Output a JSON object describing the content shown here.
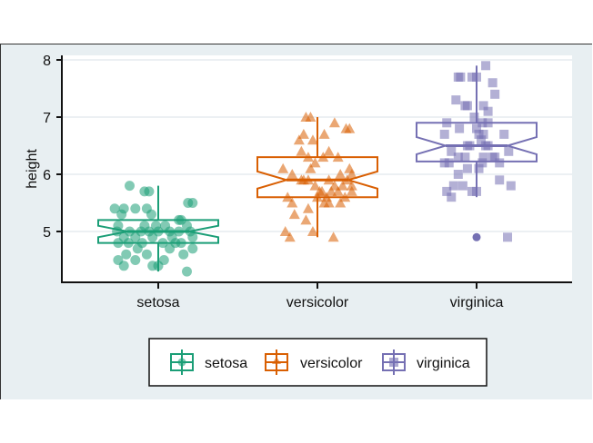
{
  "chart_data": {
    "type": "boxplot",
    "title": "",
    "xlabel": "",
    "ylabel": "height",
    "ylim": [
      4.1,
      8.1
    ],
    "yticks": [
      5,
      6,
      7,
      8
    ],
    "categories": [
      "setosa",
      "versicolor",
      "virginica"
    ],
    "grid": true,
    "notched": true,
    "legend": {
      "position": "bottom",
      "entries": [
        {
          "label": "setosa",
          "marker": "circle",
          "color": "#1b9e77"
        },
        {
          "label": "versicolor",
          "marker": "triangle",
          "color": "#d95f02"
        },
        {
          "label": "virginica",
          "marker": "square",
          "color": "#7570b3"
        }
      ]
    },
    "series": [
      {
        "name": "setosa",
        "color": "#1b9e77",
        "marker": "circle",
        "box": {
          "whisker_low": 4.3,
          "q1": 4.8,
          "median": 5.0,
          "q3": 5.2,
          "whisker_high": 5.8,
          "notch_low": 4.9,
          "notch_high": 5.1
        },
        "outliers": [],
        "points": [
          [
            -0.25,
            5.8
          ],
          [
            -0.12,
            5.7
          ],
          [
            -0.08,
            5.7
          ],
          [
            0.26,
            5.5
          ],
          [
            0.3,
            5.5
          ],
          [
            -0.38,
            5.4
          ],
          [
            -0.3,
            5.4
          ],
          [
            -0.2,
            5.4
          ],
          [
            -0.1,
            5.4
          ],
          [
            -0.06,
            5.3
          ],
          [
            -0.32,
            5.3
          ],
          [
            0.18,
            5.2
          ],
          [
            0.25,
            5.1
          ],
          [
            -0.35,
            5.1
          ],
          [
            -0.12,
            5.1
          ],
          [
            -0.02,
            5.1
          ],
          [
            0.06,
            5.1
          ],
          [
            0.2,
            5.2
          ],
          [
            0.28,
            5.0
          ],
          [
            -0.36,
            5.0
          ],
          [
            -0.25,
            5.0
          ],
          [
            -0.15,
            5.0
          ],
          [
            0.0,
            5.0
          ],
          [
            0.1,
            5.0
          ],
          [
            0.18,
            5.0
          ],
          [
            0.3,
            4.9
          ],
          [
            -0.3,
            4.9
          ],
          [
            -0.2,
            4.9
          ],
          [
            -0.05,
            4.9
          ],
          [
            0.2,
            4.8
          ],
          [
            -0.35,
            4.8
          ],
          [
            -0.26,
            4.8
          ],
          [
            -0.14,
            4.8
          ],
          [
            0.04,
            4.8
          ],
          [
            0.3,
            4.7
          ],
          [
            0.1,
            4.7
          ],
          [
            -0.18,
            4.7
          ],
          [
            0.22,
            4.6
          ],
          [
            -0.28,
            4.6
          ],
          [
            -0.35,
            4.5
          ],
          [
            -0.1,
            4.6
          ],
          [
            0.05,
            4.5
          ],
          [
            -0.3,
            4.4
          ],
          [
            -0.05,
            4.4
          ],
          [
            0.0,
            4.4
          ],
          [
            0.25,
            4.3
          ],
          [
            -0.2,
            4.5
          ],
          [
            0.15,
            4.8
          ],
          [
            -0.08,
            5.0
          ],
          [
            0.12,
            4.9
          ]
        ]
      },
      {
        "name": "versicolor",
        "color": "#d95f02",
        "marker": "triangle",
        "box": {
          "whisker_low": 4.9,
          "q1": 5.6,
          "median": 5.9,
          "q3": 6.3,
          "whisker_high": 7.0,
          "notch_low": 5.75,
          "notch_high": 6.05
        },
        "outliers": [],
        "points": [
          [
            -0.1,
            7.0
          ],
          [
            -0.06,
            7.0
          ],
          [
            0.15,
            6.9
          ],
          [
            0.25,
            6.8
          ],
          [
            0.28,
            6.8
          ],
          [
            -0.12,
            6.7
          ],
          [
            -0.04,
            6.6
          ],
          [
            -0.14,
            6.4
          ],
          [
            -0.08,
            6.3
          ],
          [
            0.1,
            6.4
          ],
          [
            0.05,
            6.3
          ],
          [
            0.18,
            6.3
          ],
          [
            -0.3,
            6.1
          ],
          [
            -0.22,
            6.0
          ],
          [
            -0.06,
            6.1
          ],
          [
            0.2,
            6.0
          ],
          [
            0.3,
            6.0
          ],
          [
            -0.12,
            5.9
          ],
          [
            -0.08,
            5.9
          ],
          [
            0.26,
            5.9
          ],
          [
            0.1,
            5.9
          ],
          [
            0.15,
            5.8
          ],
          [
            0.22,
            5.8
          ],
          [
            0.3,
            5.7
          ],
          [
            0.04,
            5.7
          ],
          [
            0.12,
            5.7
          ],
          [
            0.18,
            5.7
          ],
          [
            -0.26,
            5.6
          ],
          [
            -0.22,
            5.5
          ],
          [
            0.0,
            5.6
          ],
          [
            0.06,
            5.5
          ],
          [
            0.1,
            5.5
          ],
          [
            0.2,
            5.5
          ],
          [
            0.24,
            5.6
          ],
          [
            -0.08,
            5.4
          ],
          [
            -0.2,
            5.3
          ],
          [
            -0.28,
            5.0
          ],
          [
            -0.24,
            4.9
          ],
          [
            -0.1,
            5.2
          ],
          [
            -0.04,
            5.0
          ],
          [
            0.14,
            4.9
          ],
          [
            0.02,
            5.7
          ],
          [
            -0.02,
            5.8
          ],
          [
            0.08,
            5.6
          ],
          [
            -0.14,
            5.9
          ],
          [
            0.28,
            6.1
          ],
          [
            -0.02,
            6.2
          ],
          [
            0.06,
            6.7
          ],
          [
            -0.16,
            6.6
          ],
          [
            0.3,
            5.8
          ]
        ]
      },
      {
        "name": "virginica",
        "color": "#7570b3",
        "marker": "square",
        "box": {
          "whisker_low": 5.6,
          "q1": 6.225,
          "median": 6.5,
          "q3": 6.9,
          "whisker_high": 7.9,
          "notch_low": 6.35,
          "notch_high": 6.65
        },
        "outliers": [
          4.9
        ],
        "points": [
          [
            0.08,
            7.9
          ],
          [
            -0.14,
            7.7
          ],
          [
            -0.16,
            7.7
          ],
          [
            -0.04,
            7.7
          ],
          [
            0.0,
            7.7
          ],
          [
            0.14,
            7.6
          ],
          [
            0.16,
            7.4
          ],
          [
            -0.18,
            7.3
          ],
          [
            -0.1,
            7.2
          ],
          [
            -0.08,
            7.2
          ],
          [
            0.06,
            7.2
          ],
          [
            0.1,
            7.1
          ],
          [
            -0.26,
            6.9
          ],
          [
            -0.15,
            6.8
          ],
          [
            0.05,
            6.9
          ],
          [
            0.1,
            6.9
          ],
          [
            0.0,
            6.8
          ],
          [
            0.06,
            6.7
          ],
          [
            -0.28,
            6.7
          ],
          [
            0.24,
            6.7
          ],
          [
            0.02,
            6.7
          ],
          [
            0.08,
            6.5
          ],
          [
            -0.06,
            6.5
          ],
          [
            -0.08,
            6.5
          ],
          [
            0.1,
            6.5
          ],
          [
            -0.22,
            6.4
          ],
          [
            -0.1,
            6.3
          ],
          [
            -0.16,
            6.3
          ],
          [
            0.28,
            6.4
          ],
          [
            0.06,
            6.3
          ],
          [
            0.14,
            6.3
          ],
          [
            0.16,
            6.3
          ],
          [
            0.2,
            6.2
          ],
          [
            -0.28,
            6.2
          ],
          [
            -0.24,
            6.2
          ],
          [
            0.05,
            6.2
          ],
          [
            -0.16,
            6.0
          ],
          [
            0.02,
            6.1
          ],
          [
            -0.08,
            6.1
          ],
          [
            0.2,
            5.9
          ],
          [
            0.3,
            5.8
          ],
          [
            -0.2,
            5.8
          ],
          [
            -0.12,
            5.8
          ],
          [
            -0.04,
            5.7
          ],
          [
            0.0,
            5.7
          ],
          [
            -0.26,
            5.7
          ],
          [
            -0.22,
            5.6
          ],
          [
            0.27,
            4.9
          ],
          [
            0.04,
            6.6
          ],
          [
            -0.02,
            7.0
          ]
        ]
      }
    ]
  },
  "axis": {
    "ylabel": "height",
    "yticks": [
      "5",
      "6",
      "7",
      "8"
    ],
    "xticks": [
      "setosa",
      "versicolor",
      "virginica"
    ]
  },
  "legend": {
    "items": [
      "setosa",
      "versicolor",
      "virginica"
    ]
  }
}
